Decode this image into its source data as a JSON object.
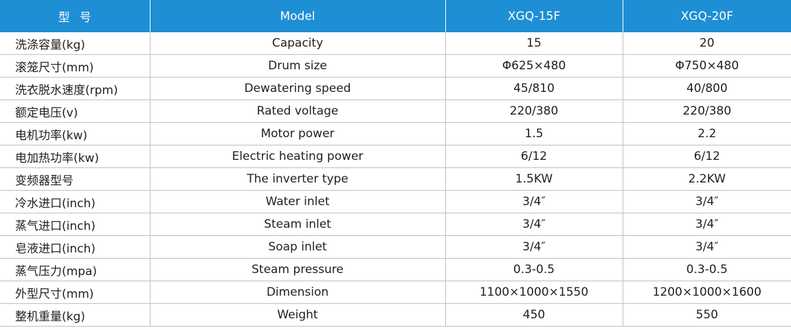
{
  "header": {
    "label": "型号",
    "model": "Model",
    "col1": "XGQ-15F",
    "col2": "XGQ-20F"
  },
  "rows": [
    {
      "label": "洗涤容量(kg)",
      "en": "Capacity",
      "v1": "15",
      "v2": "20"
    },
    {
      "label": "滚笼尺寸(mm)",
      "en": "Drum size",
      "v1": "Φ625×480",
      "v2": "Φ750×480"
    },
    {
      "label": "洗衣脱水速度(rpm)",
      "en": "Dewatering speed",
      "v1": "45/810",
      "v2": "40/800"
    },
    {
      "label": "额定电压(v)",
      "en": "Rated voltage",
      "v1": "220/380",
      "v2": "220/380"
    },
    {
      "label": "电机功率(kw)",
      "en": "Motor power",
      "v1": "1.5",
      "v2": "2.2"
    },
    {
      "label": "电加热功率(kw)",
      "en": "Electric heating power",
      "v1": "6/12",
      "v2": "6/12"
    },
    {
      "label": "变频器型号",
      "en": "The inverter type",
      "v1": "1.5KW",
      "v2": "2.2KW"
    },
    {
      "label": "冷水进口(inch)",
      "en": "Water inlet",
      "v1": "3/4″",
      "v2": "3/4″"
    },
    {
      "label": "蒸气进口(inch)",
      "en": "Steam inlet",
      "v1": "3/4″",
      "v2": "3/4″"
    },
    {
      "label": "皂液进口(inch)",
      "en": "Soap inlet",
      "v1": "3/4″",
      "v2": "3/4″"
    },
    {
      "label": "蒸气压力(mpa)",
      "en": "Steam pressure",
      "v1": "0.3-0.5",
      "v2": "0.3-0.5"
    },
    {
      "label": "外型尺寸(mm)",
      "en": "Dimension",
      "v1": "1100×1000×1550",
      "v2": "1200×1000×1600"
    },
    {
      "label": "整机重量(kg)",
      "en": "Weight",
      "v1": "450",
      "v2": "550"
    }
  ],
  "colors": {
    "header_bg": "#1e8fd5",
    "header_text": "#ffffff",
    "grid_line": "#bfbfbf",
    "body_text": "#1f1f1f"
  }
}
